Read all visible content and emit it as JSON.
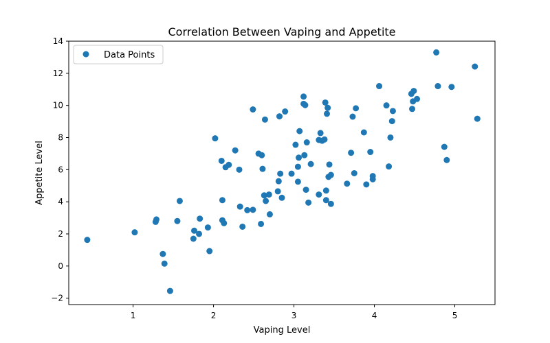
{
  "chart_data": {
    "type": "scatter",
    "title": "Correlation Between Vaping and Appetite",
    "xlabel": "Vaping Level",
    "ylabel": "Appetite Level",
    "xlim": [
      0.2,
      5.5
    ],
    "ylim": [
      -2.4,
      14.0
    ],
    "xticks": [
      1,
      2,
      3,
      4,
      5
    ],
    "yticks": [
      -2,
      0,
      2,
      4,
      6,
      8,
      10,
      12,
      14
    ],
    "ytick_labels": [
      "−2",
      "0",
      "2",
      "4",
      "6",
      "8",
      "10",
      "12",
      "14"
    ],
    "grid": false,
    "legend_position": "upper-left",
    "series": [
      {
        "name": "Data Points",
        "color": "#1f77b4",
        "points": [
          [
            0.43,
            1.63
          ],
          [
            1.02,
            2.1
          ],
          [
            1.28,
            2.75
          ],
          [
            1.29,
            2.9
          ],
          [
            1.37,
            0.75
          ],
          [
            1.39,
            0.15
          ],
          [
            1.46,
            -1.55
          ],
          [
            1.55,
            2.8
          ],
          [
            1.58,
            4.05
          ],
          [
            1.75,
            1.7
          ],
          [
            1.76,
            2.2
          ],
          [
            1.82,
            2.0
          ],
          [
            1.83,
            2.95
          ],
          [
            1.93,
            2.4
          ],
          [
            1.95,
            0.93
          ],
          [
            2.02,
            7.95
          ],
          [
            2.1,
            6.55
          ],
          [
            2.11,
            4.1
          ],
          [
            2.11,
            2.85
          ],
          [
            2.13,
            2.67
          ],
          [
            2.15,
            6.15
          ],
          [
            2.19,
            6.3
          ],
          [
            2.27,
            7.2
          ],
          [
            2.32,
            6.0
          ],
          [
            2.33,
            3.7
          ],
          [
            2.36,
            2.45
          ],
          [
            2.42,
            3.48
          ],
          [
            2.49,
            9.75
          ],
          [
            2.49,
            3.5
          ],
          [
            2.56,
            7.0
          ],
          [
            2.59,
            2.62
          ],
          [
            2.6,
            6.9
          ],
          [
            2.61,
            6.05
          ],
          [
            2.63,
            4.4
          ],
          [
            2.64,
            9.12
          ],
          [
            2.65,
            4.05
          ],
          [
            2.69,
            4.45
          ],
          [
            2.7,
            3.22
          ],
          [
            2.8,
            4.65
          ],
          [
            2.81,
            5.28
          ],
          [
            2.82,
            9.32
          ],
          [
            2.83,
            5.75
          ],
          [
            2.85,
            4.25
          ],
          [
            2.89,
            9.62
          ],
          [
            2.97,
            5.75
          ],
          [
            3.02,
            7.55
          ],
          [
            3.05,
            6.18
          ],
          [
            3.05,
            5.25
          ],
          [
            3.06,
            6.75
          ],
          [
            3.07,
            8.4
          ],
          [
            3.12,
            10.55
          ],
          [
            3.12,
            10.1
          ],
          [
            3.13,
            6.9
          ],
          [
            3.14,
            10.02
          ],
          [
            3.15,
            4.75
          ],
          [
            3.16,
            7.7
          ],
          [
            3.18,
            3.95
          ],
          [
            3.21,
            6.35
          ],
          [
            3.31,
            4.45
          ],
          [
            3.31,
            7.85
          ],
          [
            3.33,
            8.28
          ],
          [
            3.35,
            7.8
          ],
          [
            3.38,
            7.88
          ],
          [
            3.39,
            10.18
          ],
          [
            3.4,
            4.7
          ],
          [
            3.4,
            4.1
          ],
          [
            3.41,
            9.48
          ],
          [
            3.42,
            9.85
          ],
          [
            3.43,
            5.55
          ],
          [
            3.44,
            6.32
          ],
          [
            3.46,
            3.87
          ],
          [
            3.46,
            5.67
          ],
          [
            3.66,
            5.13
          ],
          [
            3.71,
            7.05
          ],
          [
            3.73,
            9.3
          ],
          [
            3.75,
            5.78
          ],
          [
            3.77,
            9.82
          ],
          [
            3.87,
            8.32
          ],
          [
            3.9,
            5.08
          ],
          [
            3.95,
            7.1
          ],
          [
            3.98,
            5.4
          ],
          [
            3.98,
            5.6
          ],
          [
            4.06,
            11.2
          ],
          [
            4.15,
            10.0
          ],
          [
            4.18,
            6.2
          ],
          [
            4.2,
            8.0
          ],
          [
            4.22,
            9.02
          ],
          [
            4.23,
            9.65
          ],
          [
            4.46,
            10.72
          ],
          [
            4.47,
            9.78
          ],
          [
            4.48,
            10.25
          ],
          [
            4.49,
            10.9
          ],
          [
            4.53,
            10.4
          ],
          [
            4.77,
            13.3
          ],
          [
            4.79,
            11.2
          ],
          [
            4.87,
            7.42
          ],
          [
            4.9,
            6.6
          ],
          [
            4.96,
            11.15
          ],
          [
            5.25,
            12.42
          ],
          [
            5.28,
            9.17
          ]
        ]
      }
    ]
  }
}
